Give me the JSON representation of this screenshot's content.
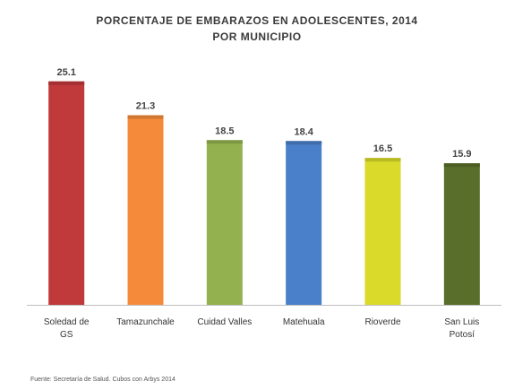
{
  "chart_data": {
    "type": "bar",
    "title_line1": "PORCENTAJE DE EMBARAZOS EN ADOLESCENTES, 2014",
    "title_line2": "POR MUNICIPIO",
    "categories": [
      [
        "Soledad de",
        "GS"
      ],
      [
        "Tamazunchale"
      ],
      [
        "Cuidad Valles"
      ],
      [
        "Matehuala"
      ],
      [
        "Rioverde"
      ],
      [
        "San Luis",
        "Potosí"
      ]
    ],
    "values": [
      25.1,
      21.3,
      18.5,
      18.4,
      16.5,
      15.9
    ],
    "value_labels": [
      "25.1",
      "21.3",
      "18.5",
      "18.4",
      "16.5",
      "15.9"
    ],
    "colors": [
      "#c0393b",
      "#f58b3a",
      "#93b24f",
      "#4a7fc9",
      "#dada2a",
      "#5a6e2c"
    ],
    "ylim": [
      0,
      28
    ],
    "grid": false,
    "legend": "none",
    "xlabel": "",
    "ylabel": "",
    "source": "Fuente: Secretaría de Salud. Cubos con Arbys 2014"
  }
}
